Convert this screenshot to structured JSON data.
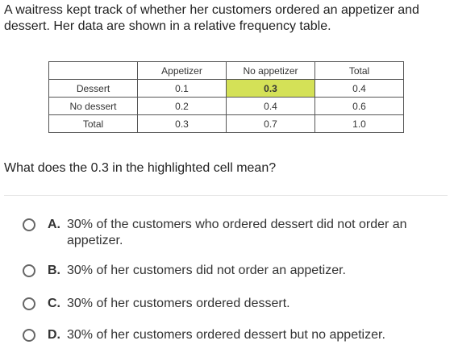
{
  "prompt": "A waitress kept track of whether her customers ordered an appetizer and dessert. Her data are shown in a relative frequency table.",
  "table": {
    "header": [
      "",
      "Appetizer",
      "No appetizer",
      "Total"
    ],
    "rows": [
      [
        "Dessert",
        "0.1",
        "0.3",
        "0.4"
      ],
      [
        "No dessert",
        "0.2",
        "0.4",
        "0.6"
      ],
      [
        "Total",
        "0.3",
        "0.7",
        "1.0"
      ]
    ],
    "highlight_color": "#d4e157"
  },
  "question": "What does the 0.3 in the highlighted cell mean?",
  "choices": [
    {
      "letter": "A.",
      "text": "30% of the customers who ordered dessert did not order an appetizer."
    },
    {
      "letter": "B.",
      "text": "30% of her customers did not order an appetizer."
    },
    {
      "letter": "C.",
      "text": "30% of her customers ordered dessert."
    },
    {
      "letter": "D.",
      "text": "30% of her customers ordered dessert but no appetizer."
    }
  ]
}
